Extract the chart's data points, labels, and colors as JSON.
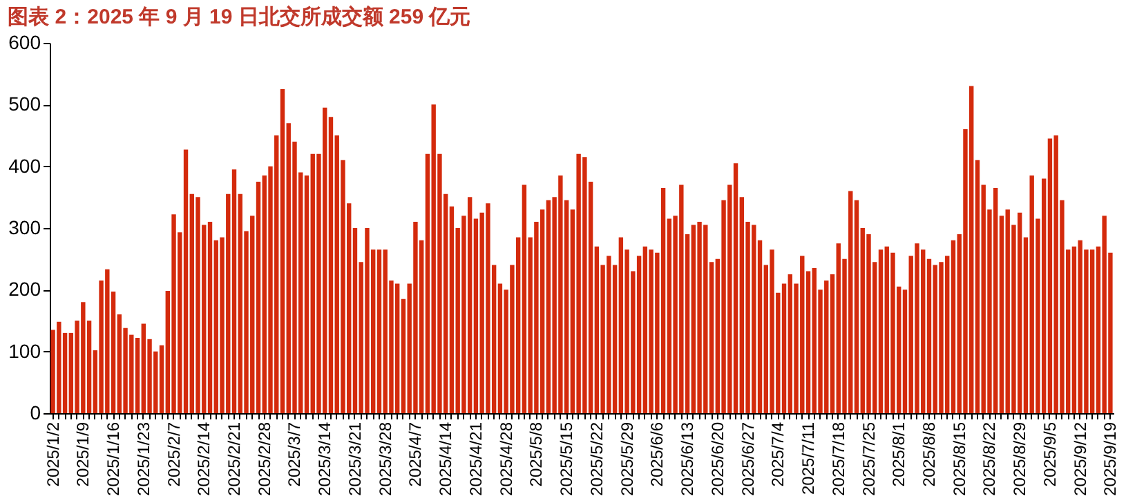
{
  "chart_data": {
    "type": "bar",
    "title": "图表 2：2025 年 9 月 19 日北交所成交额 259 亿元",
    "color": "#d42a0c",
    "categories": [
      "2025/1/2",
      null,
      null,
      null,
      null,
      "2025/1/9",
      null,
      null,
      null,
      null,
      "2025/1/16",
      null,
      null,
      null,
      null,
      "2025/1/23",
      null,
      null,
      null,
      null,
      "2025/2/7",
      null,
      null,
      null,
      null,
      "2025/2/14",
      null,
      null,
      null,
      null,
      "2025/2/21",
      null,
      null,
      null,
      null,
      "2025/2/28",
      null,
      null,
      null,
      null,
      "2025/3/7",
      null,
      null,
      null,
      null,
      "2025/3/14",
      null,
      null,
      null,
      null,
      "2025/3/21",
      null,
      null,
      null,
      null,
      "2025/3/28",
      null,
      null,
      null,
      null,
      "2025/4/7",
      null,
      null,
      null,
      null,
      "2025/4/14",
      null,
      null,
      null,
      null,
      "2025/4/21",
      null,
      null,
      null,
      null,
      "2025/4/28",
      null,
      null,
      null,
      null,
      "2025/5/8",
      null,
      null,
      null,
      null,
      "2025/5/15",
      null,
      null,
      null,
      null,
      "2025/5/22",
      null,
      null,
      null,
      null,
      "2025/5/29",
      null,
      null,
      null,
      null,
      "2025/6/6",
      null,
      null,
      null,
      null,
      "2025/6/13",
      null,
      null,
      null,
      null,
      "2025/6/20",
      null,
      null,
      null,
      null,
      "2025/6/27",
      null,
      null,
      null,
      null,
      "2025/7/4",
      null,
      null,
      null,
      null,
      "2025/7/11",
      null,
      null,
      null,
      null,
      "2025/7/18",
      null,
      null,
      null,
      null,
      "2025/7/25",
      null,
      null,
      null,
      null,
      "2025/8/1",
      null,
      null,
      null,
      null,
      "2025/8/8",
      null,
      null,
      null,
      null,
      "2025/8/15",
      null,
      null,
      null,
      null,
      "2025/8/22",
      null,
      null,
      null,
      null,
      "2025/8/29",
      null,
      null,
      null,
      null,
      "2025/9/5",
      null,
      null,
      null,
      null,
      "2025/9/12",
      null,
      null,
      null,
      null,
      "2025/9/19"
    ],
    "values": [
      135,
      148,
      130,
      130,
      150,
      180,
      150,
      102,
      215,
      233,
      197,
      160,
      138,
      127,
      122,
      145,
      120,
      100,
      110,
      198,
      322,
      293,
      427,
      355,
      350,
      305,
      310,
      280,
      285,
      355,
      395,
      355,
      295,
      320,
      375,
      385,
      400,
      450,
      525,
      470,
      440,
      390,
      385,
      420,
      420,
      495,
      480,
      450,
      410,
      340,
      300,
      245,
      300,
      265,
      265,
      265,
      215,
      210,
      185,
      210,
      310,
      280,
      420,
      500,
      420,
      355,
      335,
      300,
      320,
      350,
      315,
      325,
      340,
      240,
      210,
      200,
      240,
      285,
      370,
      285,
      310,
      330,
      345,
      350,
      385,
      345,
      330,
      420,
      415,
      375,
      270,
      240,
      255,
      240,
      285,
      265,
      230,
      255,
      270,
      265,
      260,
      365,
      315,
      320,
      370,
      290,
      305,
      310,
      305,
      245,
      250,
      345,
      370,
      405,
      350,
      310,
      305,
      280,
      240,
      265,
      195,
      210,
      225,
      210,
      255,
      230,
      235,
      200,
      215,
      225,
      275,
      250,
      360,
      345,
      300,
      290,
      245,
      265,
      270,
      260,
      205,
      200,
      255,
      275,
      265,
      250,
      240,
      245,
      255,
      280,
      290,
      460,
      530,
      410,
      370,
      330,
      365,
      320,
      330,
      305,
      325,
      285,
      385,
      315,
      380,
      445,
      450,
      345,
      265,
      270,
      280,
      265,
      265,
      270,
      320,
      260
    ],
    "ylim": [
      0,
      600
    ],
    "yticks": [
      0,
      100,
      200,
      300,
      400,
      500,
      600
    ],
    "grid": false
  }
}
